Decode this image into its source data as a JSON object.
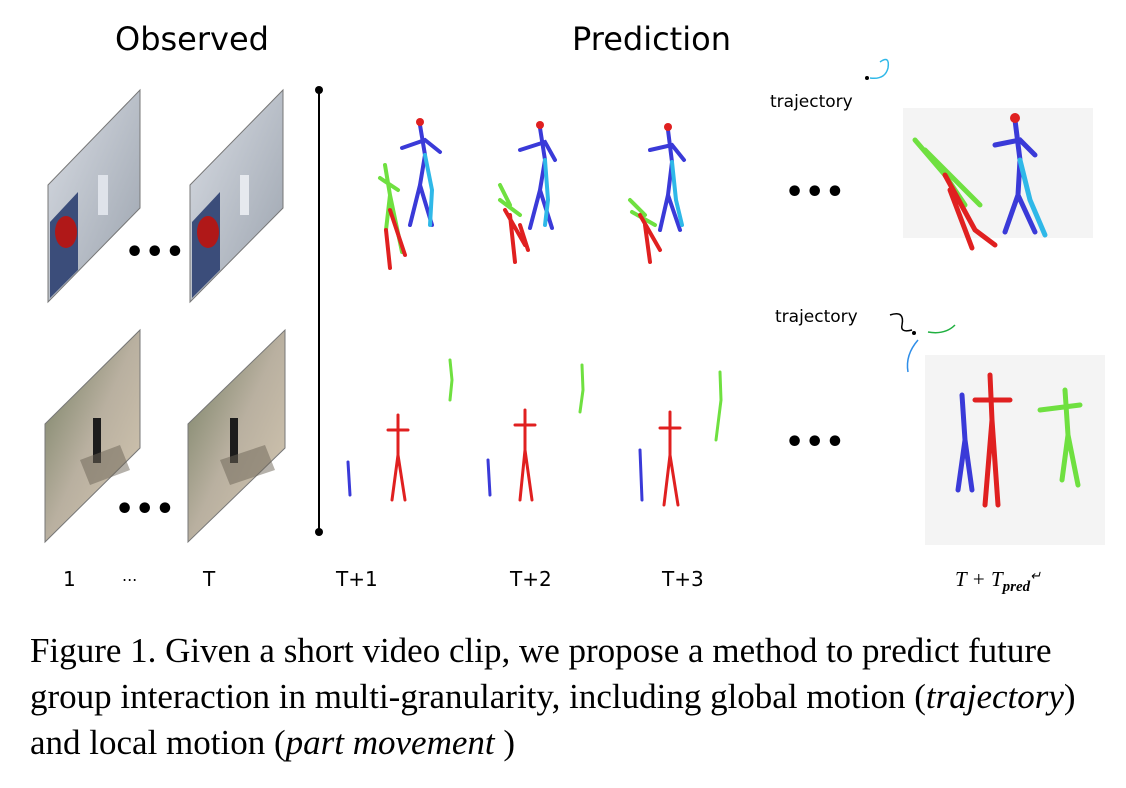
{
  "figure": {
    "header_observed": "Observed",
    "header_prediction": "Prediction",
    "ellipsis": "•••",
    "trajectory_label": "trajectory",
    "time_labels": {
      "t1": "1",
      "dots": "...",
      "T": "T",
      "T1": "T+1",
      "T2": "T+2",
      "T3": "T+3"
    },
    "final_label_main": "T + T",
    "final_label_sub": "pred",
    "final_label_mark": "↵"
  },
  "caption": {
    "part1": "Figure 1. Given a short video clip, we propose a method to predict future group interaction in multi-granularity, including global motion (",
    "em1": "trajectory",
    "part2": ") and local motion (",
    "em2": "part movement",
    "part3": " )"
  },
  "colors": {
    "red": "#e02020",
    "blue": "#3a3ad8",
    "cyan": "#2fb8e8",
    "green": "#6fe040",
    "purple": "#8a3ae0",
    "orange": "#f08a20"
  }
}
